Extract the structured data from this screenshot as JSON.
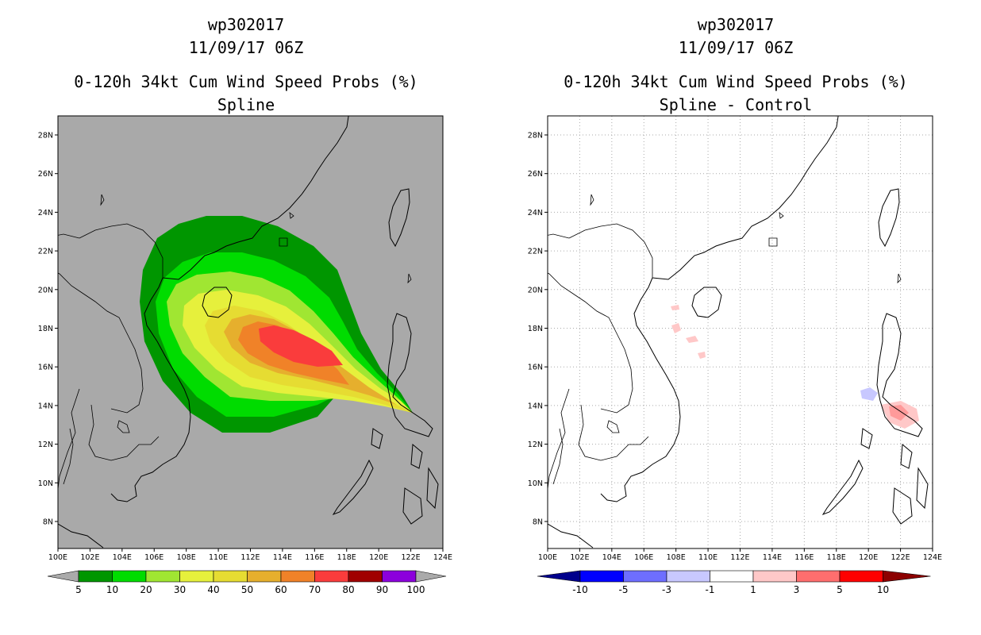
{
  "left": {
    "title_line1": "wp302017",
    "title_line2": "11/09/17 06Z",
    "title_line3": "0-120h 34kt Cum Wind Speed Probs (%)",
    "title_line4": "Spline",
    "x_ticks": [
      "100E",
      "102E",
      "104E",
      "106E",
      "108E",
      "110E",
      "112E",
      "114E",
      "116E",
      "118E",
      "120E",
      "122E",
      "124E"
    ],
    "y_ticks": [
      "28N",
      "26N",
      "24N",
      "22N",
      "20N",
      "18N",
      "16N",
      "14N",
      "12N",
      "10N",
      "8N"
    ],
    "colorbar": {
      "labels": [
        "5",
        "10",
        "20",
        "30",
        "40",
        "50",
        "60",
        "70",
        "80",
        "90",
        "100"
      ],
      "colors": [
        "#009600",
        "#00dc00",
        "#a0e632",
        "#e6f03c",
        "#e6dc32",
        "#e6af2d",
        "#f08228",
        "#fa3c3c",
        "#a00000",
        "#8c00dc",
        "#aaaaaa"
      ]
    },
    "background_color": "#a9a9a9"
  },
  "right": {
    "title_line1": "wp302017",
    "title_line2": "11/09/17 06Z",
    "title_line3": "0-120h 34kt Cum Wind Speed Probs (%)",
    "title_line4": "Spline - Control",
    "x_ticks": [
      "100E",
      "102E",
      "104E",
      "106E",
      "108E",
      "110E",
      "112E",
      "114E",
      "116E",
      "118E",
      "120E",
      "122E",
      "124E"
    ],
    "y_ticks": [
      "28N",
      "26N",
      "24N",
      "22N",
      "20N",
      "18N",
      "16N",
      "14N",
      "12N",
      "10N",
      "8N"
    ],
    "colorbar": {
      "labels": [
        "-10",
        "-5",
        "-3",
        "-1",
        "1",
        "3",
        "5",
        "10"
      ],
      "colors": [
        "#00008c",
        "#0000ff",
        "#6e6eff",
        "#c8c8ff",
        "#ffffff",
        "#ffc8c8",
        "#ff6e6e",
        "#ff0000",
        "#8c0000"
      ]
    }
  }
}
